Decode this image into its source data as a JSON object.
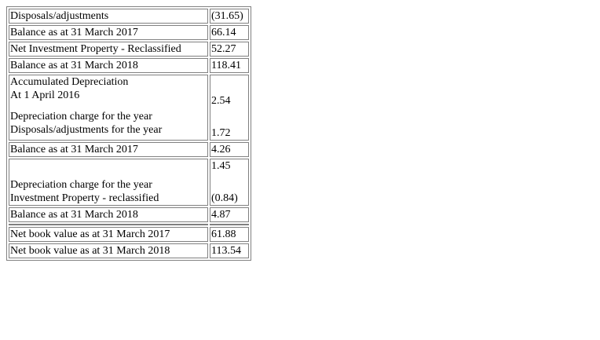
{
  "table": {
    "rows": [
      {
        "label": "Disposals/adjustments",
        "value": "(31.65)"
      },
      {
        "label": "Balance as at 31 March 2017",
        "value": "66.14"
      },
      {
        "label": "Net Investment Property - Reclassified",
        "value": "52.27"
      },
      {
        "label": "Balance as at 31 March 2018",
        "value": "118.41"
      }
    ],
    "depreciation_block": {
      "heading": "Accumulated Depreciation",
      "opening": "At 1 April 2016",
      "charge_label": "Depreciation charge for the year",
      "disposals_label": "Disposals/adjustments for the year",
      "charge_value": "2.54",
      "disposals_value": "1.72"
    },
    "balance_2017": {
      "label": "Balance as at 31 March 2017",
      "value": "4.26"
    },
    "block_2018": {
      "charge_label": "Depreciation charge for the year",
      "reclass_label": "Investment Property - reclassified",
      "charge_value": "1.45",
      "reclass_value": "(0.84)"
    },
    "balance_2018": {
      "label": "Balance as at 31 March 2018",
      "value": "4.87"
    },
    "net_book": [
      {
        "label": "Net book value as at 31 March 2017",
        "value": "61.88"
      },
      {
        "label": "Net book value as at 31 March 2018",
        "value": "113.54"
      }
    ]
  }
}
